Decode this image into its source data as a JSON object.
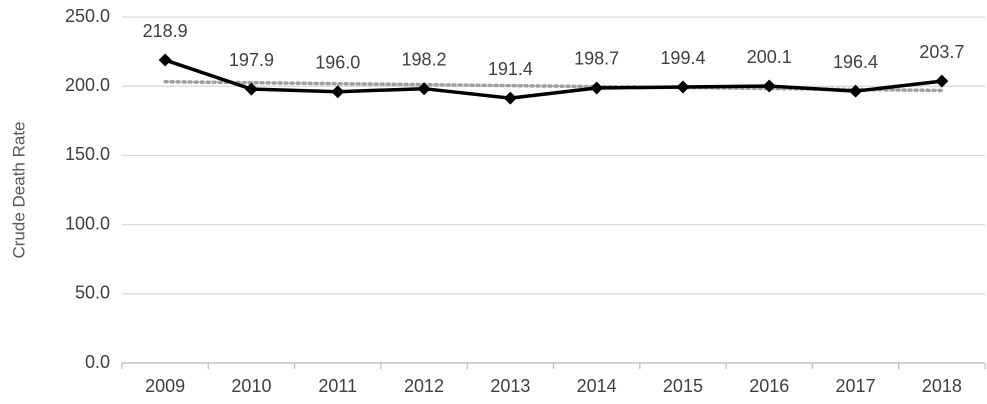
{
  "chart_data": {
    "type": "line",
    "y_axis_label": "Crude Death Rate",
    "categories": [
      "2009",
      "2010",
      "2011",
      "2012",
      "2013",
      "2014",
      "2015",
      "2016",
      "2017",
      "2018"
    ],
    "series": [
      {
        "name": "Crude Death Rate",
        "color": "#000000",
        "values": [
          218.9,
          197.9,
          196.0,
          198.2,
          191.4,
          198.7,
          199.4,
          200.1,
          196.4,
          203.7
        ],
        "value_labels": [
          "218.9",
          "197.9",
          "196.0",
          "198.2",
          "191.4",
          "198.7",
          "199.4",
          "200.1",
          "196.4",
          "203.7"
        ]
      }
    ],
    "ylim": [
      0,
      250
    ],
    "yticks": [
      {
        "value": 0,
        "label": "0.0"
      },
      {
        "value": 50,
        "label": "50.0"
      },
      {
        "value": 100,
        "label": "100.0"
      },
      {
        "value": 150,
        "label": "150.0"
      },
      {
        "value": 200,
        "label": "200.0"
      },
      {
        "value": 250,
        "label": "250.0"
      }
    ],
    "grid": true,
    "trendline": {
      "type": "linear",
      "color": "#a0a0a0",
      "style": "dotted"
    }
  }
}
